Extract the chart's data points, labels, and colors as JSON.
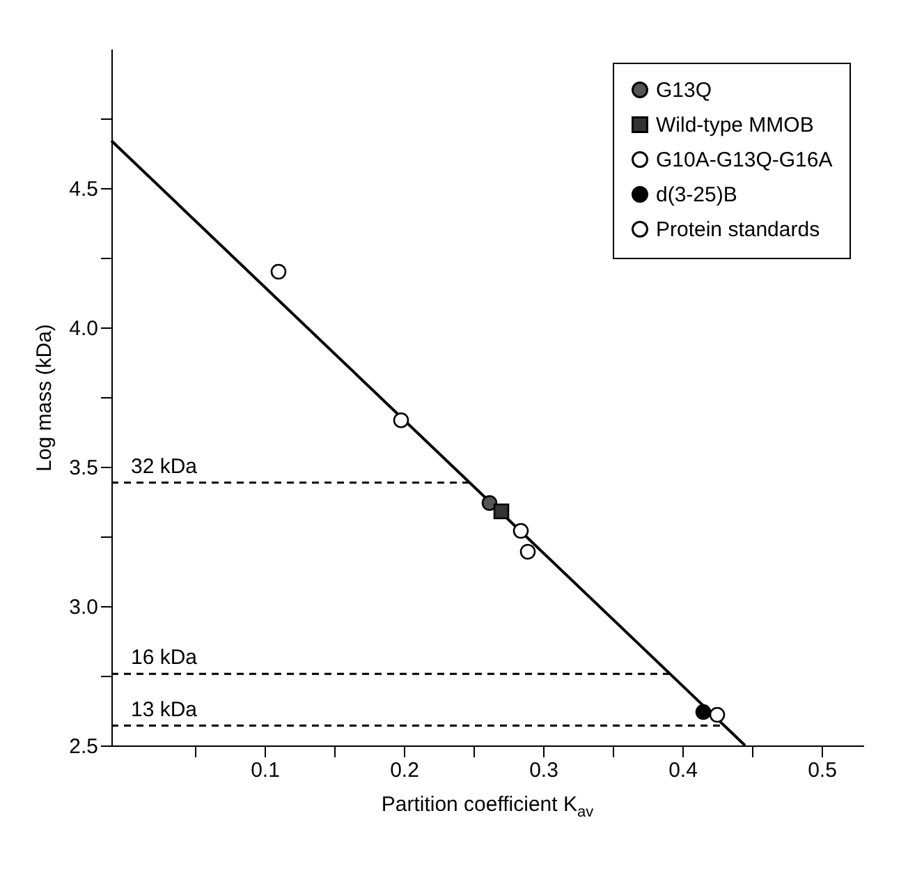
{
  "chart_data": {
    "type": "scatter",
    "xlabel": "Partition coefficient K$_{av}$",
    "ylabel": "Log mass (kDa)",
    "xlim": [
      -0.01,
      0.53
    ],
    "ylim": [
      2.5,
      5.0
    ],
    "xticks": [
      {
        "value": 0.05,
        "label": null
      },
      0.1,
      {
        "value": 0.15,
        "label": null
      },
      0.2,
      {
        "value": 0.25,
        "label": null
      },
      0.3,
      {
        "value": 0.35,
        "label": null
      },
      0.4,
      {
        "value": 0.45,
        "label": null
      },
      0.5
    ],
    "yticks": [
      {
        "value": 2.5,
        "label": "2.5"
      },
      {
        "value": 2.75,
        "label": null
      },
      {
        "value": 3,
        "label": "3.0"
      },
      {
        "value": 3.25,
        "label": null
      },
      {
        "value": 3.5,
        "label": "3.5"
      },
      {
        "value": 3.75,
        "label": null
      },
      {
        "value": 4,
        "label": "4.0"
      },
      {
        "value": 4.25,
        "label": null
      },
      {
        "value": 4.5,
        "label": "4.5"
      },
      {
        "value": 4.75,
        "label": null
      }
    ],
    "legend": "top right",
    "series": [
      {
        "name": "G13Q",
        "color": "#555555",
        "marker": "circle",
        "x": [
          0.2615
        ],
        "values": [
          3.37
        ]
      },
      {
        "name": "Wild-type MMOB",
        "color": "#333333",
        "marker": "square",
        "x": [
          0.27
        ],
        "values": [
          3.34
        ]
      },
      {
        "name": "G10A-G13Q-G16A",
        "color": "#ffffff",
        "marker": "circle",
        "x": [
          0.284
        ],
        "values": [
          3.27
        ]
      },
      {
        "name": "d(3-25)B",
        "color": "#000000",
        "marker": "circle",
        "x": [
          0.415
        ],
        "values": [
          2.62
        ]
      },
      {
        "name": "Protein standards",
        "color": "#ffffff",
        "marker": "circle",
        "x": [
          0.11,
          0.198,
          0.289,
          0.425
        ],
        "values": [
          4.2,
          3.667,
          3.195,
          2.61
        ]
      },
      {
        "type": "line",
        "color": "#000000",
        "x": [
          -0.01,
          0.445
        ],
        "values": [
          4.67,
          2.5
        ]
      }
    ],
    "ref_lines": [
      {
        "axis": "y",
        "value": 3.443,
        "label": "32 kDa",
        "color": "#000000",
        "line_style": "dashed"
      },
      {
        "axis": "y",
        "value": 2.757,
        "label": "16 kDa",
        "color": "#000000",
        "line_style": "dashed"
      },
      {
        "axis": "y",
        "value": 2.571,
        "label": "13 kDa",
        "color": "#000000",
        "line_style": "dashed"
      }
    ]
  }
}
